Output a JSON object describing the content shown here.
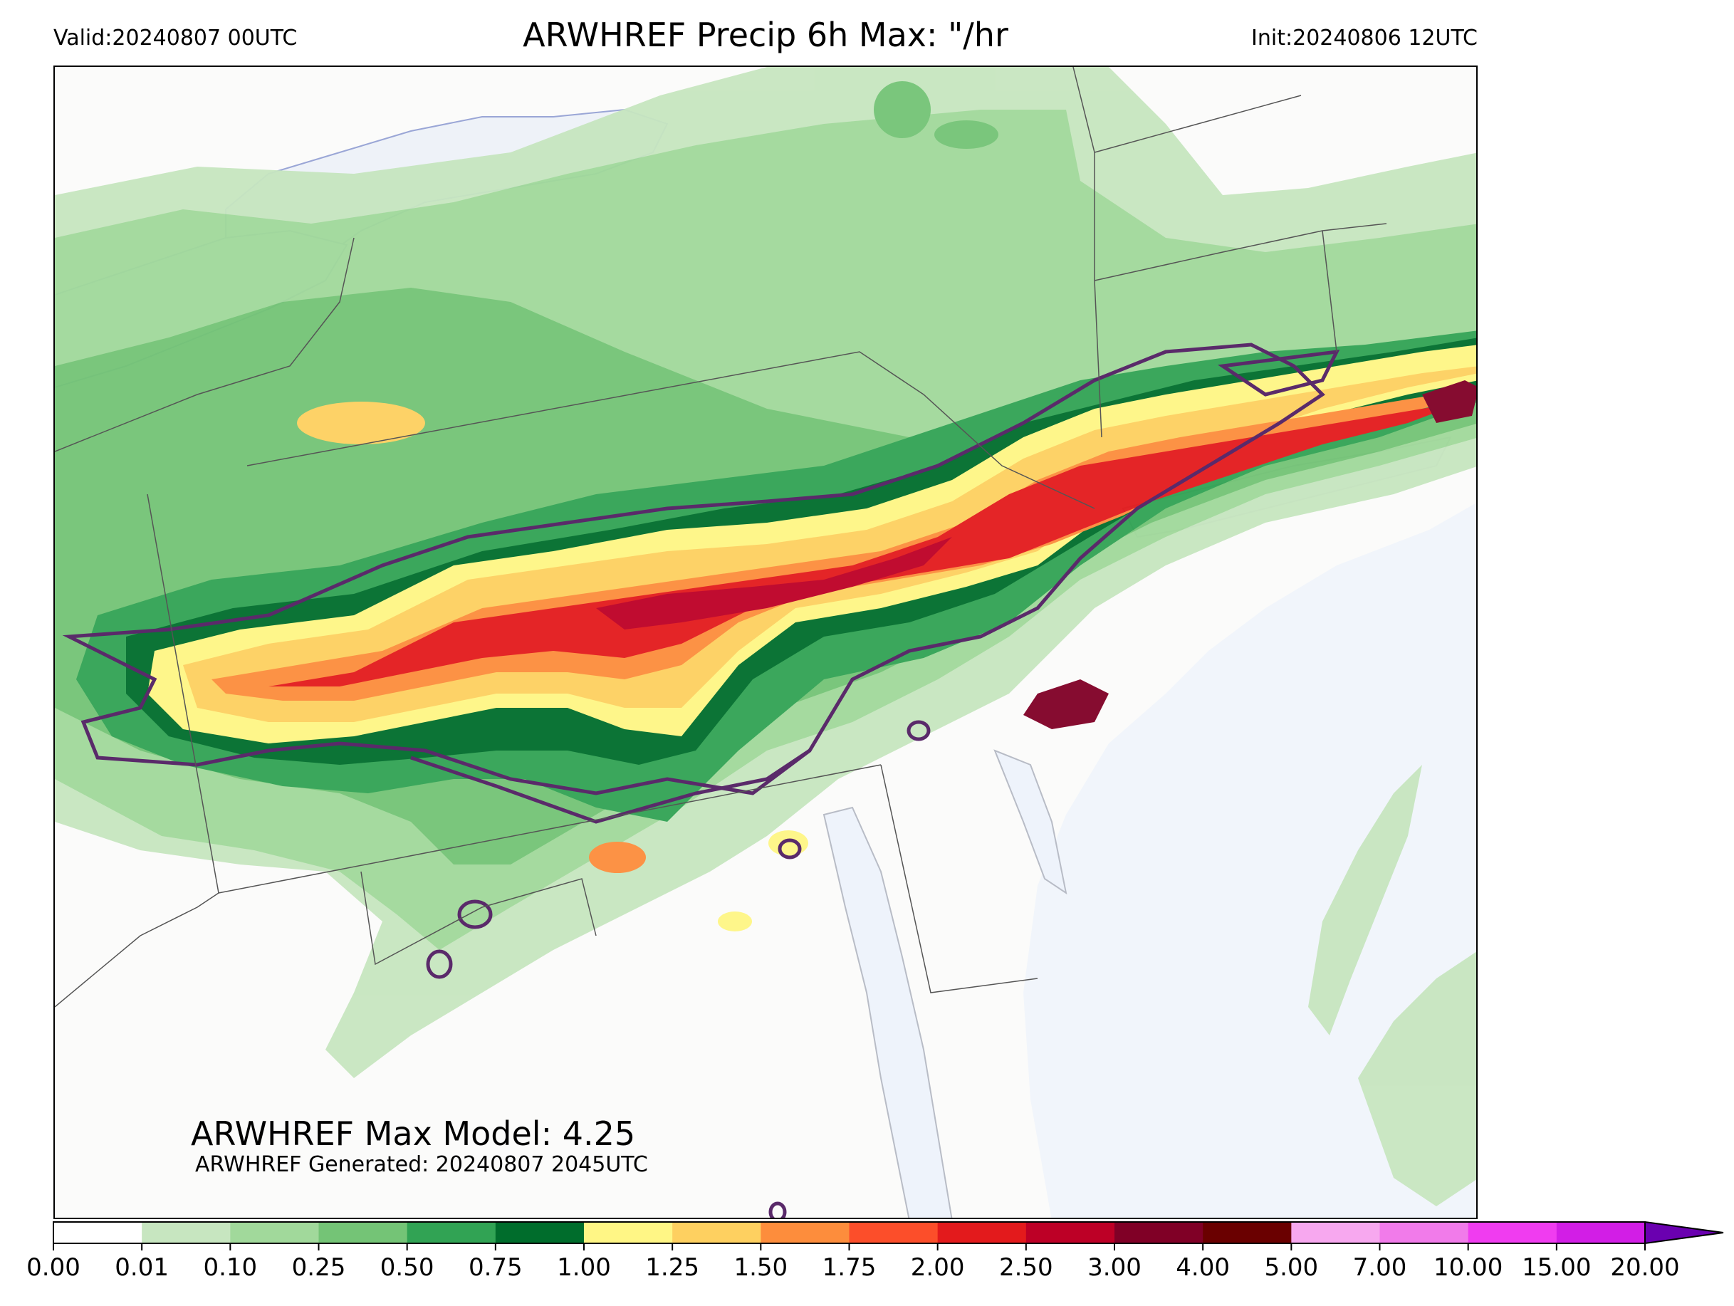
{
  "header": {
    "valid": "Valid:20240807 00UTC",
    "title": "ARWHREF Precip 6h Max: \"/hr",
    "init": "Init:20240806 12UTC"
  },
  "annotations": {
    "max_model": "ARWHREF Max Model: 4.25",
    "generated": "ARWHREF Generated: 20240807 2045UTC"
  },
  "colorbar": {
    "ticks": [
      "0.00",
      "0.01",
      "0.10",
      "0.25",
      "0.50",
      "0.75",
      "1.00",
      "1.25",
      "1.50",
      "1.75",
      "2.00",
      "2.50",
      "3.00",
      "4.00",
      "5.00",
      "7.00",
      "10.00",
      "15.00",
      "20.00"
    ],
    "colors": [
      "#ffffff",
      "#c7e6c0",
      "#a1d99b",
      "#74c476",
      "#31a354",
      "#006d2c",
      "#fff685",
      "#fed060",
      "#fd8d3c",
      "#fc4e2a",
      "#e31a1c",
      "#bd0026",
      "#800026",
      "#6a0000",
      "#f7a8ef",
      "#f17bea",
      "#f03cf0",
      "#d21ee6",
      "#9a00c8"
    ],
    "extend_color": "#6a00b0"
  },
  "colors": {
    "water": "#eef3fb",
    "land": "#fbfbfa",
    "contour": "#5a2a6a"
  }
}
